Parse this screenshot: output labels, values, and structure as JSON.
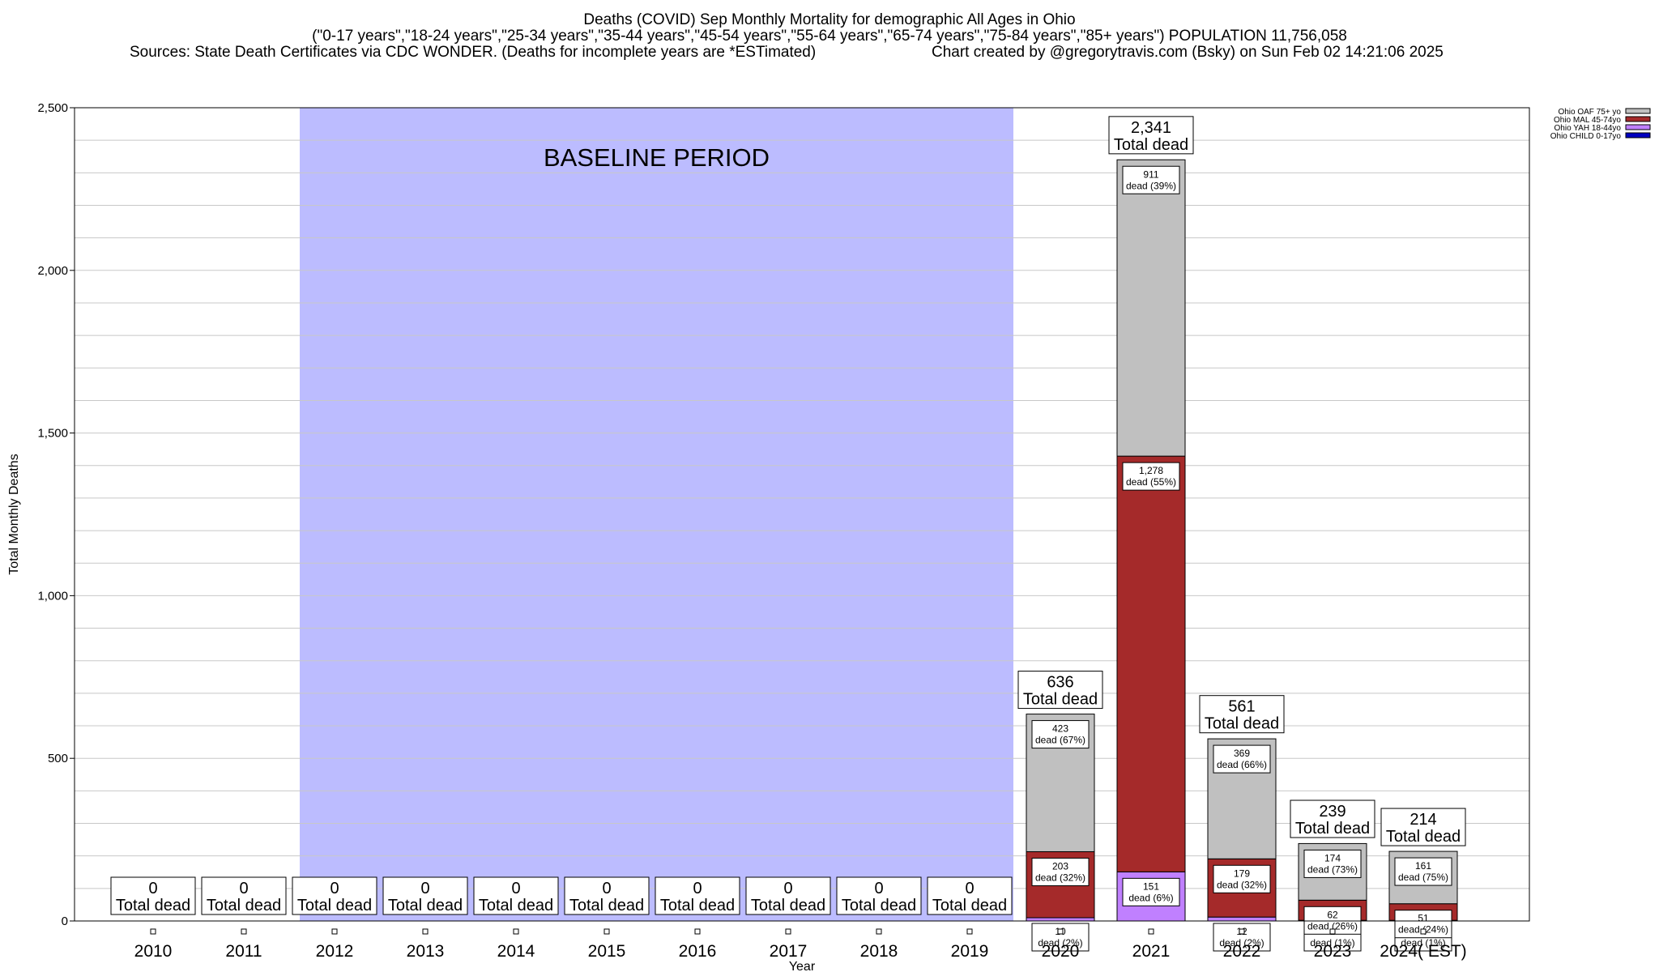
{
  "header": {
    "title": "Deaths (COVID) Sep Monthly Mortality for demographic All Ages in Ohio",
    "subtitle": "(\"0-17 years\",\"18-24 years\",\"25-34 years\",\"35-44 years\",\"45-54 years\",\"55-64 years\",\"65-74 years\",\"75-84 years\",\"85+ years\") POPULATION 11,756,058",
    "sources": "Sources: State Death Certificates via CDC WONDER. (Deaths for incomplete years are *ESTimated)",
    "credit": "Chart created by @gregorytravis.com (Bsky) on Sun Feb 02 14:21:06 2025"
  },
  "colors": {
    "baseline": "#bcbcff",
    "oaf": "#c0c0c0",
    "mal": "#a52a2a",
    "yah": "#c080ff",
    "child": "#0000c0",
    "grid": "#c8c8c8"
  },
  "chart_data": {
    "type": "bar",
    "stacked": true,
    "title": "Deaths (COVID) Sep Monthly Mortality for demographic All Ages in Ohio",
    "xlabel": "Year",
    "ylabel": "Total Monthly Deaths",
    "ylim": [
      0,
      2500
    ],
    "yticks": [
      0,
      500,
      1000,
      1500,
      2000,
      2500
    ],
    "ytick_labels": [
      "0",
      "500",
      "1,000",
      "1,500",
      "2,000",
      "2,500"
    ],
    "grid": true,
    "legend_position": "top-right",
    "baseline_label": "BASELINE PERIOD",
    "baseline_range": [
      "2012",
      "2019"
    ],
    "categories": [
      "2010",
      "2011",
      "2012",
      "2013",
      "2014",
      "2015",
      "2016",
      "2017",
      "2018",
      "2019",
      "2020",
      "2021",
      "2022",
      "2023",
      "2024( EST)"
    ],
    "totals": [
      0,
      0,
      0,
      0,
      0,
      0,
      0,
      0,
      0,
      0,
      636,
      2341,
      561,
      239,
      214
    ],
    "total_label_lines": [
      "Total dead"
    ],
    "total_value_labels": [
      "0",
      "0",
      "0",
      "0",
      "0",
      "0",
      "0",
      "0",
      "0",
      "0",
      "636",
      "2,341",
      "561",
      "239",
      "214"
    ],
    "series": [
      {
        "name": "Ohio CHILD 0-17yo",
        "values": [
          0,
          0,
          0,
          0,
          0,
          0,
          0,
          0,
          0,
          0,
          0,
          0,
          0,
          0,
          0
        ],
        "labels": [
          null,
          null,
          null,
          null,
          null,
          null,
          null,
          null,
          null,
          null,
          null,
          null,
          null,
          null,
          null
        ]
      },
      {
        "name": "Ohio YAH 18-44yo",
        "values": [
          0,
          0,
          0,
          0,
          0,
          0,
          0,
          0,
          0,
          0,
          10,
          151,
          12,
          2,
          2
        ],
        "labels": [
          null,
          null,
          null,
          null,
          null,
          null,
          null,
          null,
          null,
          null,
          [
            "10",
            "dead (2%)"
          ],
          [
            "151",
            "dead (6%)"
          ],
          [
            "12",
            "dead (2%)"
          ],
          [
            "2",
            "dead (1%)"
          ],
          [
            "2",
            "dead (1%)"
          ]
        ]
      },
      {
        "name": "Ohio MAL 45-74yo",
        "values": [
          0,
          0,
          0,
          0,
          0,
          0,
          0,
          0,
          0,
          0,
          203,
          1278,
          179,
          62,
          51
        ],
        "labels": [
          null,
          null,
          null,
          null,
          null,
          null,
          null,
          null,
          null,
          null,
          [
            "203",
            "dead (32%)"
          ],
          [
            "1,278",
            "dead (55%)"
          ],
          [
            "179",
            "dead (32%)"
          ],
          [
            "62",
            "dead (26%)"
          ],
          [
            "51",
            "dead (24%)"
          ]
        ]
      },
      {
        "name": "Ohio OAF 75+ yo",
        "values": [
          0,
          0,
          0,
          0,
          0,
          0,
          0,
          0,
          0,
          0,
          423,
          911,
          369,
          174,
          161
        ],
        "labels": [
          null,
          null,
          null,
          null,
          null,
          null,
          null,
          null,
          null,
          null,
          [
            "423",
            "dead (67%)"
          ],
          [
            "911",
            "dead (39%)"
          ],
          [
            "369",
            "dead (66%)"
          ],
          [
            "174",
            "dead (73%)"
          ],
          [
            "161",
            "dead (75%)"
          ]
        ]
      }
    ],
    "legend": [
      "Ohio OAF 75+ yo",
      "Ohio MAL 45-74yo",
      "Ohio YAH 18-44yo",
      "Ohio CHILD 0-17yo"
    ]
  }
}
